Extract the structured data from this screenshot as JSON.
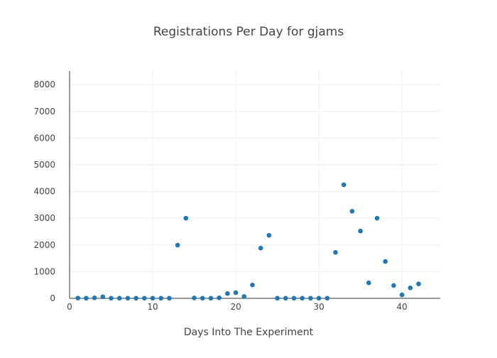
{
  "chart_data": {
    "type": "scatter",
    "title": "Registrations Per Day for gjams",
    "xlabel": "Days Into The Experiment",
    "ylabel": "",
    "xlim": [
      0,
      44.6
    ],
    "ylim": [
      0,
      8510
    ],
    "xticks": [
      0,
      10,
      20,
      30,
      40
    ],
    "yticks": [
      0,
      1000,
      2000,
      3000,
      4000,
      5000,
      6000,
      7000,
      8000
    ],
    "grid": true,
    "color": "#1f77b4",
    "x": [
      1,
      2,
      3,
      4,
      5,
      6,
      7,
      8,
      9,
      10,
      11,
      12,
      13,
      14,
      15,
      16,
      17,
      18,
      19,
      20,
      21,
      22,
      23,
      24,
      25,
      26,
      27,
      28,
      29,
      30,
      31,
      32,
      33,
      34,
      35,
      36,
      37,
      38,
      39,
      40,
      41,
      42
    ],
    "y": [
      10,
      5,
      20,
      60,
      5,
      5,
      5,
      5,
      5,
      5,
      5,
      5,
      1990,
      3000,
      15,
      5,
      5,
      20,
      180,
      210,
      70,
      500,
      1880,
      2360,
      5,
      5,
      5,
      5,
      5,
      5,
      5,
      1720,
      4250,
      3260,
      2520,
      580,
      3000,
      1380,
      480,
      130,
      390,
      540
    ]
  }
}
